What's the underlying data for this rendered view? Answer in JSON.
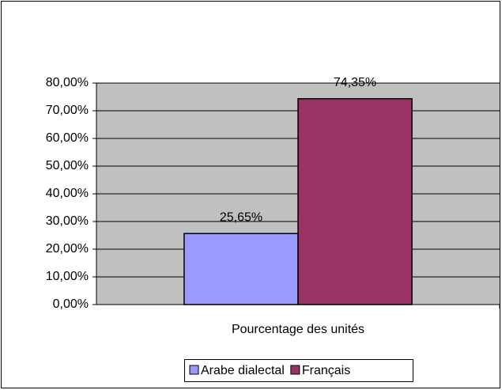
{
  "chart_data": {
    "type": "bar",
    "categories": [
      "Pourcentage des unités"
    ],
    "series": [
      {
        "name": "Arabe dialectal",
        "color": "#9999ff",
        "values": [
          25.65
        ],
        "value_labels": [
          "25,65%"
        ]
      },
      {
        "name": "Français",
        "color": "#993366",
        "values": [
          74.35
        ],
        "value_labels": [
          "74,35%"
        ]
      }
    ],
    "ylim": [
      0,
      80
    ],
    "yticks": [
      {
        "value": 0,
        "label": "0,00%"
      },
      {
        "value": 10,
        "label": "10,00%"
      },
      {
        "value": 20,
        "label": "20,00%"
      },
      {
        "value": 30,
        "label": "30,00%"
      },
      {
        "value": 40,
        "label": "40,00%"
      },
      {
        "value": 50,
        "label": "50,00%"
      },
      {
        "value": 60,
        "label": "60,00%"
      },
      {
        "value": 70,
        "label": "70,00%"
      },
      {
        "value": 80,
        "label": "80,00%"
      }
    ],
    "grid": true,
    "legend": "bottom",
    "plot_background": "#c0c0c0"
  }
}
